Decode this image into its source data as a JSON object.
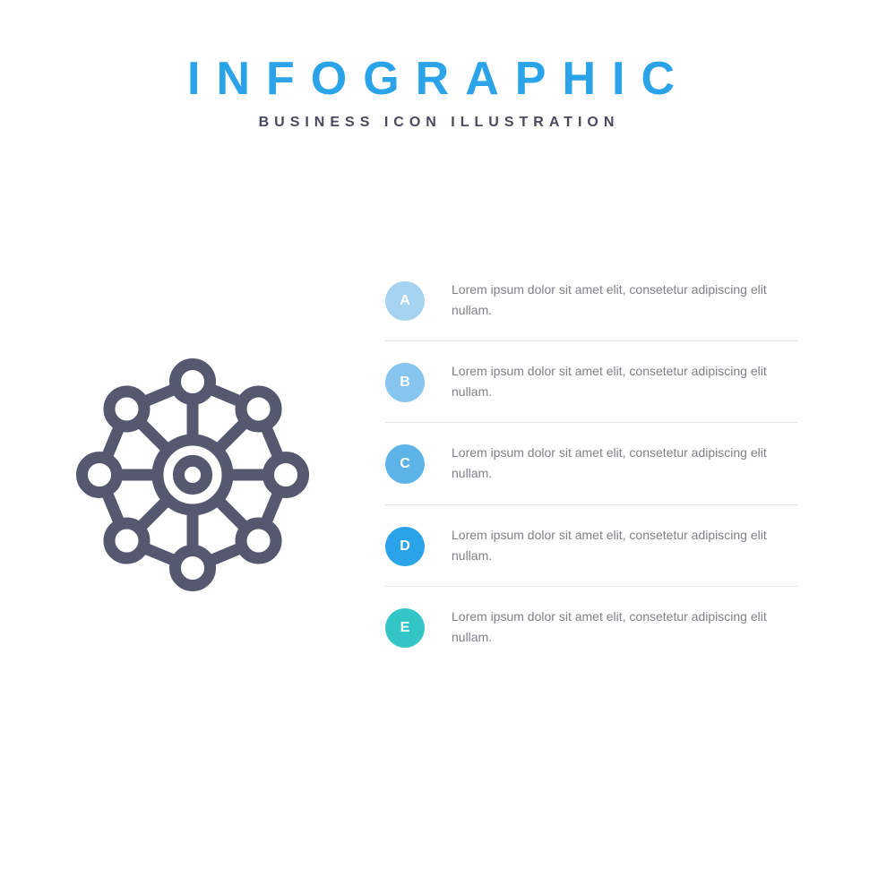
{
  "header": {
    "title": "INFOGRAPHIC",
    "title_color": "#2aa3e8",
    "title_fontsize": 52,
    "subtitle": "BUSINESS ICON ILLUSTRATION",
    "subtitle_color": "#4a4a5e",
    "subtitle_fontsize": 16
  },
  "icon": {
    "stroke": "#56586f",
    "stroke_width": 10,
    "size": 260
  },
  "steps_common": {
    "text_color": "#808089",
    "divider_color": "#e5e5e5",
    "badge_text_color": "#ffffff"
  },
  "steps": [
    {
      "letter": "A",
      "color": "#a7d3f2",
      "text": "Lorem ipsum dolor sit amet elit, consetetur adipiscing elit nullam."
    },
    {
      "letter": "B",
      "color": "#86c5ee",
      "text": "Lorem ipsum dolor sit amet elit, consetetur adipiscing elit nullam."
    },
    {
      "letter": "C",
      "color": "#5cb3e8",
      "text": "Lorem ipsum dolor sit amet elit, consetetur adipiscing elit nullam."
    },
    {
      "letter": "D",
      "color": "#2aa3e8",
      "text": "Lorem ipsum dolor sit amet elit, consetetur adipiscing elit nullam."
    },
    {
      "letter": "E",
      "color": "#34c6c6",
      "text": "Lorem ipsum dolor sit amet elit, consetetur adipiscing elit nullam."
    }
  ]
}
